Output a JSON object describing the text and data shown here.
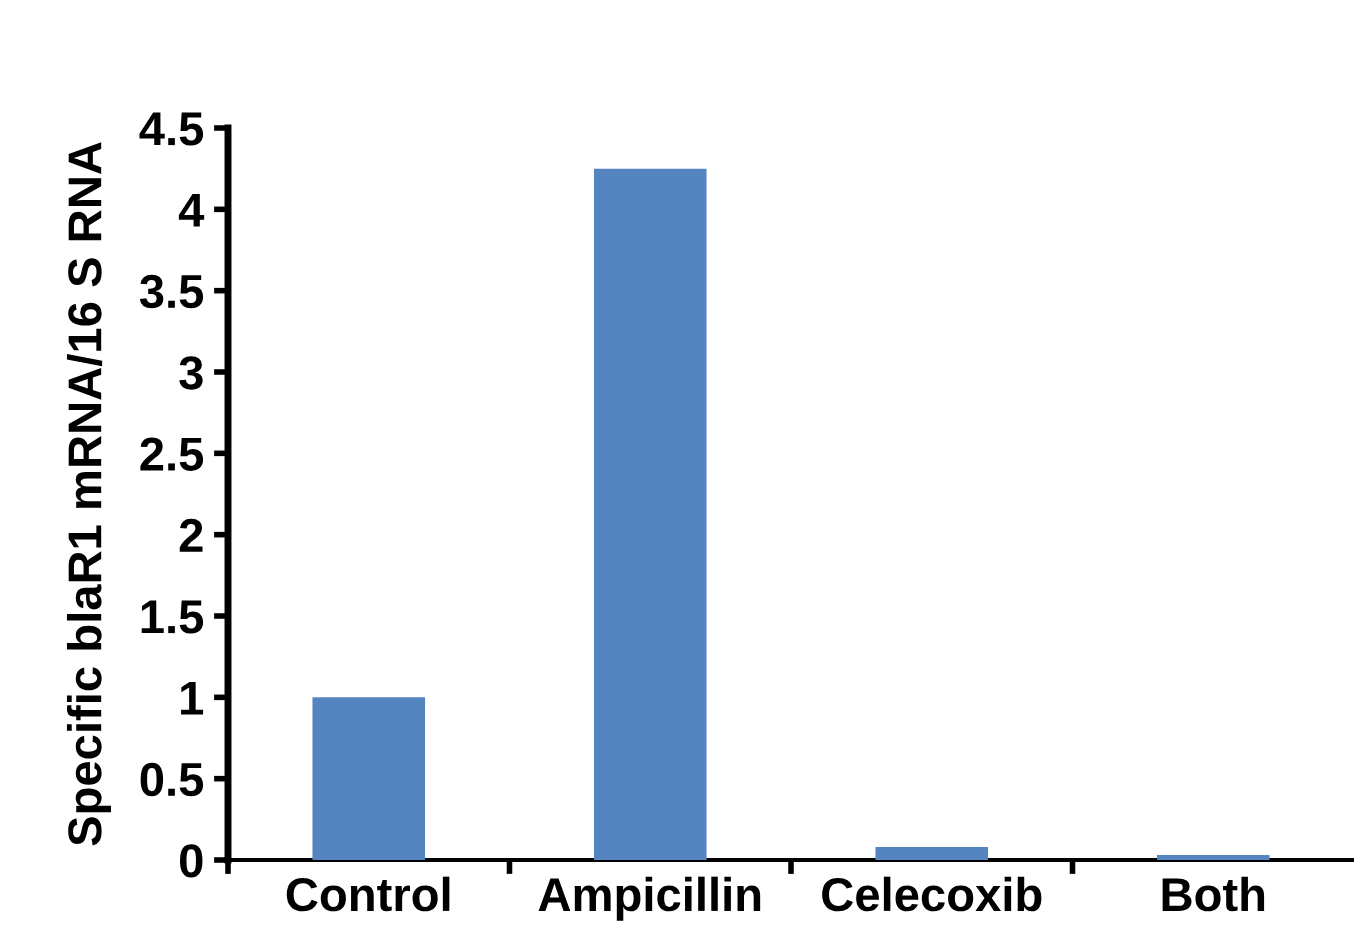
{
  "chart_data": {
    "type": "bar",
    "ylabel": "Specific blaR1 mRNA/16 S RNA",
    "categories": [
      "Control",
      "Ampicillin",
      "Celecoxib",
      "Both"
    ],
    "values": [
      1.0,
      4.25,
      0.08,
      0.03
    ],
    "color": "#5585c1",
    "ylim": [
      0,
      4.5
    ],
    "yticks": [
      0,
      0.5,
      1,
      1.5,
      2,
      2.5,
      3,
      3.5,
      4,
      4.5
    ],
    "grid": false,
    "legend": false
  }
}
